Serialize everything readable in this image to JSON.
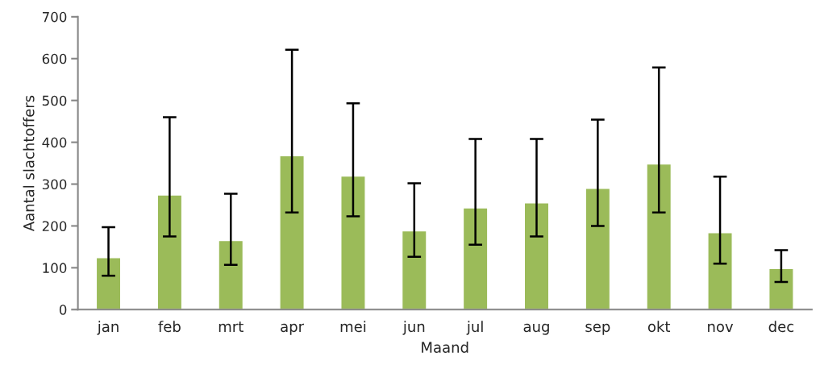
{
  "chart_data": {
    "type": "bar",
    "xlabel": "Maand",
    "ylabel": "Aantal slachtoffers",
    "categories": [
      "jan",
      "feb",
      "mrt",
      "apr",
      "mei",
      "jun",
      "jul",
      "aug",
      "sep",
      "okt",
      "nov",
      "dec"
    ],
    "values": [
      124,
      274,
      165,
      368,
      319,
      188,
      243,
      255,
      290,
      348,
      184,
      98
    ],
    "errors": [
      [
        81,
        197
      ],
      [
        175,
        460
      ],
      [
        107,
        277
      ],
      [
        232,
        621
      ],
      [
        223,
        493
      ],
      [
        126,
        302
      ],
      [
        155,
        408
      ],
      [
        175,
        408
      ],
      [
        200,
        454
      ],
      [
        232,
        579
      ],
      [
        110,
        318
      ],
      [
        66,
        142
      ]
    ],
    "color": "#9bbb59",
    "ylim": [
      0,
      700
    ],
    "yticks": [
      0,
      100,
      200,
      300,
      400,
      500,
      600,
      700
    ],
    "grid": false,
    "legend": false
  }
}
